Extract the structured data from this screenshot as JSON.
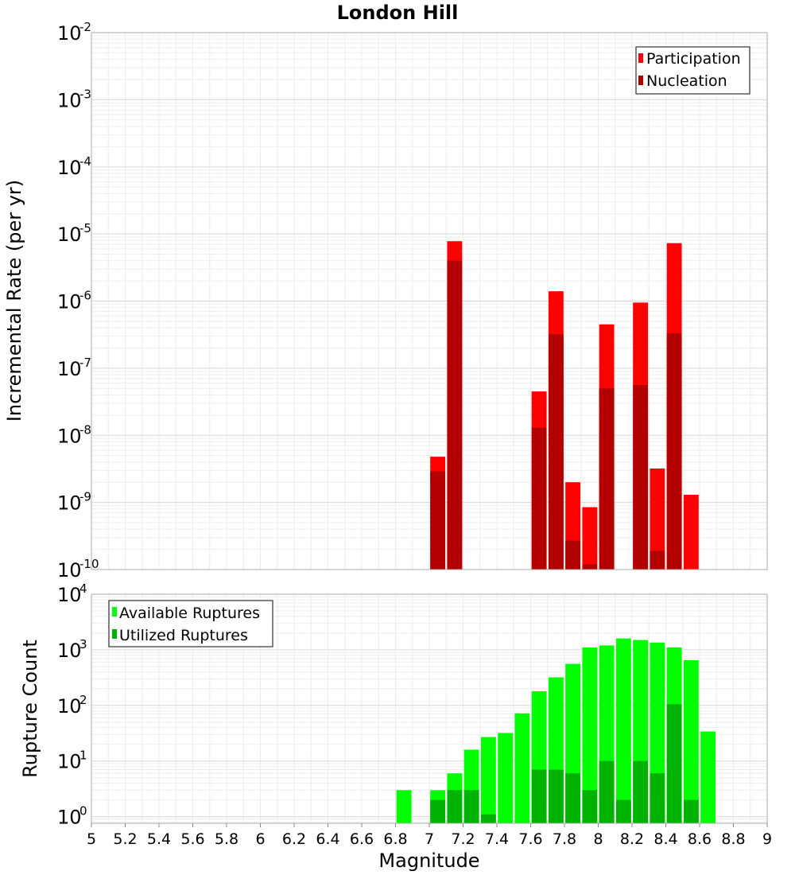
{
  "chart_data": [
    {
      "type": "bar",
      "title": "London Hill",
      "xlabel": "",
      "ylabel": "Incremental Rate (per yr)",
      "yscale": "log",
      "xlim": [
        5,
        9
      ],
      "ylim_exp": [
        -10,
        -2
      ],
      "y_tick_base": "10",
      "y_tick_exponents": [
        "-10",
        "-9",
        "-8",
        "-7",
        "-6",
        "-5",
        "-4",
        "-3",
        "-2"
      ],
      "grid": true,
      "legend_position": "top-right",
      "bin_width": 0.1,
      "series": [
        {
          "name": "Participation",
          "color": "#ff0000",
          "points": [
            {
              "x": 7.05,
              "y": 4.8e-09
            },
            {
              "x": 7.15,
              "y": 7.8e-06
            },
            {
              "x": 7.65,
              "y": 4.5e-08
            },
            {
              "x": 7.75,
              "y": 1.4e-06
            },
            {
              "x": 7.85,
              "y": 2e-09
            },
            {
              "x": 7.95,
              "y": 8.5e-10
            },
            {
              "x": 8.05,
              "y": 4.5e-07
            },
            {
              "x": 8.25,
              "y": 9.5e-07
            },
            {
              "x": 8.35,
              "y": 3.2e-09
            },
            {
              "x": 8.45,
              "y": 7.3e-06
            },
            {
              "x": 8.55,
              "y": 1.3e-09
            }
          ]
        },
        {
          "name": "Nucleation",
          "color": "#b20000",
          "points": [
            {
              "x": 7.05,
              "y": 2.9e-09
            },
            {
              "x": 7.15,
              "y": 4e-06
            },
            {
              "x": 7.65,
              "y": 1.3e-08
            },
            {
              "x": 7.75,
              "y": 3.2e-07
            },
            {
              "x": 7.85,
              "y": 2.7e-10
            },
            {
              "x": 7.95,
              "y": 1.2e-10
            },
            {
              "x": 8.05,
              "y": 5e-08
            },
            {
              "x": 8.25,
              "y": 5.6e-08
            },
            {
              "x": 8.35,
              "y": 1.9e-10
            },
            {
              "x": 8.45,
              "y": 3.3e-07
            }
          ]
        }
      ]
    },
    {
      "type": "bar",
      "title": "",
      "xlabel": "Magnitude",
      "ylabel": "Rupture Count",
      "yscale": "log",
      "xlim": [
        5,
        9
      ],
      "ylim_exp": [
        -0.12,
        4
      ],
      "y_tick_base": "10",
      "y_tick_exponents": [
        "0",
        "1",
        "2",
        "3",
        "4"
      ],
      "x_ticks": [
        "5",
        "5.2",
        "5.4",
        "5.6",
        "5.8",
        "6",
        "6.2",
        "6.4",
        "6.6",
        "6.8",
        "7",
        "7.2",
        "7.4",
        "7.6",
        "7.8",
        "8",
        "8.2",
        "8.4",
        "8.6",
        "8.8",
        "9"
      ],
      "grid": true,
      "legend_position": "top-left",
      "bin_width": 0.1,
      "series": [
        {
          "name": "Available Ruptures",
          "color": "#00ff00",
          "points": [
            {
              "x": 6.85,
              "y": 3
            },
            {
              "x": 7.05,
              "y": 3
            },
            {
              "x": 7.15,
              "y": 6
            },
            {
              "x": 7.25,
              "y": 16
            },
            {
              "x": 7.35,
              "y": 27
            },
            {
              "x": 7.45,
              "y": 32
            },
            {
              "x": 7.55,
              "y": 72
            },
            {
              "x": 7.65,
              "y": 180
            },
            {
              "x": 7.75,
              "y": 320
            },
            {
              "x": 7.85,
              "y": 560
            },
            {
              "x": 7.95,
              "y": 1100
            },
            {
              "x": 8.05,
              "y": 1200
            },
            {
              "x": 8.15,
              "y": 1600
            },
            {
              "x": 8.25,
              "y": 1500
            },
            {
              "x": 8.35,
              "y": 1350
            },
            {
              "x": 8.45,
              "y": 1100
            },
            {
              "x": 8.55,
              "y": 650
            },
            {
              "x": 8.65,
              "y": 34
            }
          ]
        },
        {
          "name": "Utilized Ruptures",
          "color": "#00b200",
          "points": [
            {
              "x": 7.05,
              "y": 2
            },
            {
              "x": 7.15,
              "y": 3
            },
            {
              "x": 7.25,
              "y": 3
            },
            {
              "x": 7.35,
              "y": 1.1
            },
            {
              "x": 7.65,
              "y": 7
            },
            {
              "x": 7.75,
              "y": 7
            },
            {
              "x": 7.85,
              "y": 6
            },
            {
              "x": 7.95,
              "y": 3
            },
            {
              "x": 8.05,
              "y": 10
            },
            {
              "x": 8.15,
              "y": 2
            },
            {
              "x": 8.25,
              "y": 10
            },
            {
              "x": 8.35,
              "y": 6
            },
            {
              "x": 8.45,
              "y": 105
            },
            {
              "x": 8.55,
              "y": 2
            }
          ]
        }
      ]
    }
  ]
}
